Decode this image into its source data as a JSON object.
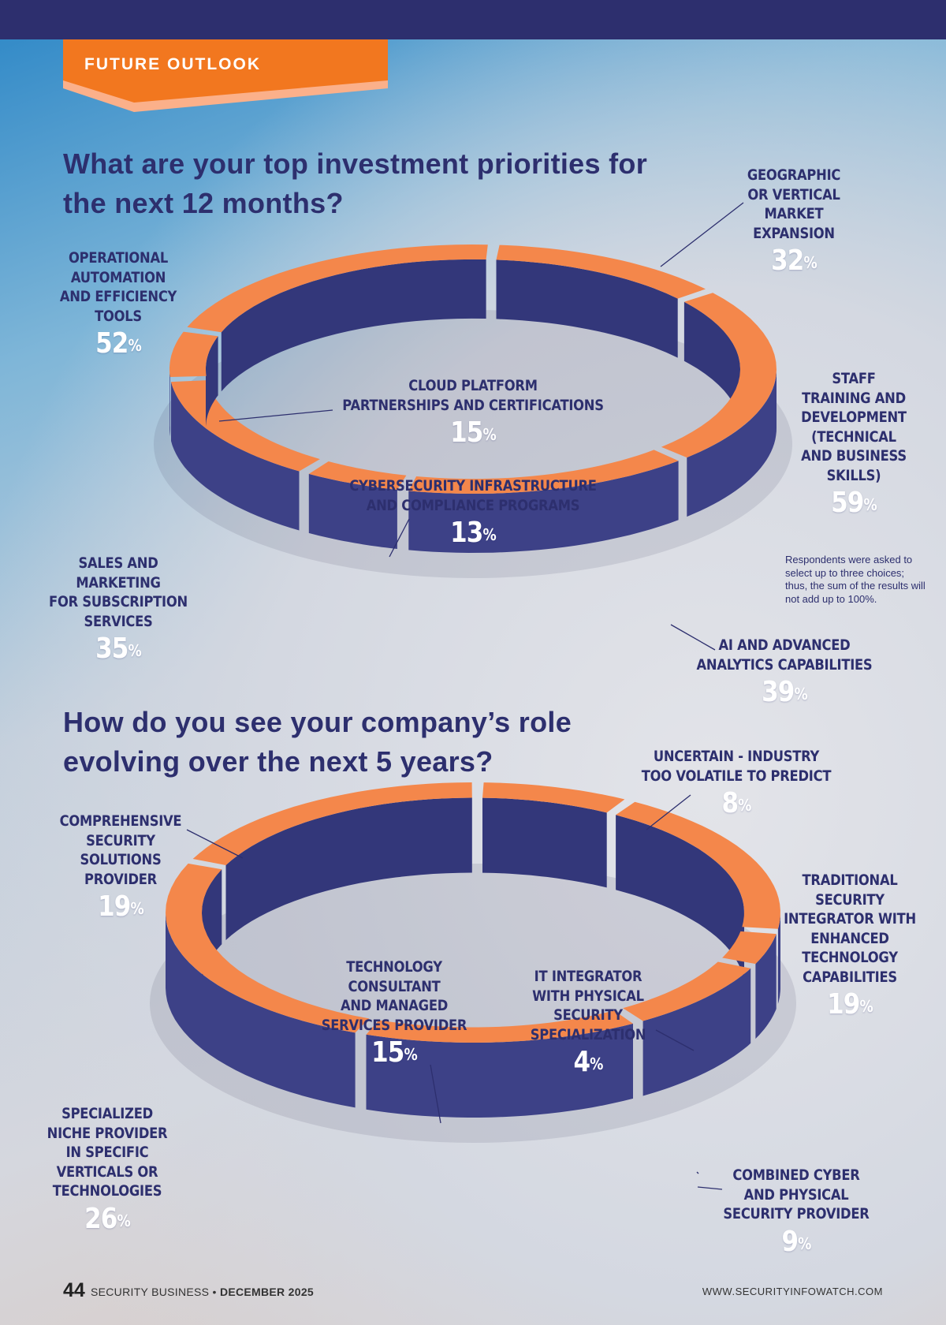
{
  "section_label": "FUTURE OUTLOOK",
  "colors": {
    "navy": "#2d2f6e",
    "orange": "#f4874b",
    "side": "#3d4187"
  },
  "chart_data": [
    {
      "type": "pie",
      "title": "What are your top investment priorities for the next 12 months?",
      "note": "Respondents were asked to select up to three choices; thus, the sum of the results will not add up to 100%.",
      "categories": [
        "GEOGRAPHIC OR VERTICAL MARKET EXPANSION",
        "STAFF TRAINING AND DEVELOPMENT (TECHNICAL AND BUSINESS SKILLS)",
        "AI AND ADVANCED ANALYTICS CAPABILITIES",
        "CYBERSECURITY INFRASTRUCTURE AND COMPLIANCE PROGRAMS",
        "SALES AND MARKETING FOR SUBSCRIPTION SERVICES",
        "CLOUD PLATFORM PARTNERSHIPS AND CERTIFICATIONS",
        "OPERATIONAL AUTOMATION AND EFFICIENCY TOOLS"
      ],
      "values": [
        32,
        59,
        39,
        13,
        35,
        15,
        52
      ],
      "labels": [
        {
          "lines": [
            "GEOGRAPHIC",
            "OR VERTICAL",
            "MARKET",
            "EXPANSION"
          ],
          "value": "32"
        },
        {
          "lines": [
            "STAFF",
            "TRAINING AND",
            "DEVELOPMENT",
            "(TECHNICAL",
            "AND BUSINESS",
            "SKILLS)"
          ],
          "value": "59"
        },
        {
          "lines": [
            "AI AND ADVANCED",
            "ANALYTICS CAPABILITIES"
          ],
          "value": "39"
        },
        {
          "lines": [
            "CYBERSECURITY INFRASTRUCTURE",
            "AND COMPLIANCE PROGRAMS"
          ],
          "value": "13"
        },
        {
          "lines": [
            "SALES AND",
            "MARKETING",
            "FOR SUBSCRIPTION",
            "SERVICES"
          ],
          "value": "35"
        },
        {
          "lines": [
            "CLOUD PLATFORM",
            "PARTNERSHIPS AND CERTIFICATIONS"
          ],
          "value": "15"
        },
        {
          "lines": [
            "OPERATIONAL",
            "AUTOMATION",
            "AND EFFICIENCY",
            "TOOLS"
          ],
          "value": "52"
        }
      ]
    },
    {
      "type": "pie",
      "title": "How do you see your company’s role evolving over the next 5 years?",
      "categories": [
        "UNCERTAIN - INDUSTRY TOO VOLATILE TO PREDICT",
        "TRADITIONAL SECURITY INTEGRATOR WITH ENHANCED TECHNOLOGY CAPABILITIES",
        "IT INTEGRATOR WITH PHYSICAL SECURITY SPECIALIZATION",
        "COMBINED CYBER AND PHYSICAL SECURITY PROVIDER",
        "TECHNOLOGY CONSULTANT AND MANAGED SERVICES PROVIDER",
        "SPECIALIZED NICHE PROVIDER IN SPECIFIC VERTICALS OR TECHNOLOGIES",
        "COMPREHENSIVE SECURITY SOLUTIONS PROVIDER"
      ],
      "values": [
        8,
        19,
        4,
        9,
        15,
        26,
        19
      ],
      "labels": [
        {
          "lines": [
            "UNCERTAIN - INDUSTRY",
            "TOO VOLATILE TO PREDICT"
          ],
          "value": "8"
        },
        {
          "lines": [
            "TRADITIONAL SECURITY",
            "INTEGRATOR WITH",
            "ENHANCED",
            "TECHNOLOGY",
            "CAPABILITIES"
          ],
          "value": "19"
        },
        {
          "lines": [
            "IT INTEGRATOR",
            "WITH PHYSICAL",
            "SECURITY",
            "SPECIALIZATION"
          ],
          "value": "4"
        },
        {
          "lines": [
            "COMBINED CYBER",
            "AND PHYSICAL",
            "SECURITY PROVIDER"
          ],
          "value": "9"
        },
        {
          "lines": [
            "TECHNOLOGY",
            "CONSULTANT",
            "AND MANAGED",
            "SERVICES PROVIDER"
          ],
          "value": "15"
        },
        {
          "lines": [
            "SPECIALIZED",
            "NICHE PROVIDER",
            "IN SPECIFIC",
            "VERTICALS OR",
            "TECHNOLOGIES"
          ],
          "value": "26"
        },
        {
          "lines": [
            "COMPREHENSIVE",
            "SECURITY",
            "SOLUTIONS",
            "PROVIDER"
          ],
          "value": "19"
        }
      ]
    }
  ],
  "percent_sign": "%",
  "footer": {
    "page_number": "44",
    "publication": "SECURITY BUSINESS",
    "separator": "•",
    "issue": "DECEMBER 2025",
    "url": "WWW.SECURITYINFOWATCH.COM"
  }
}
